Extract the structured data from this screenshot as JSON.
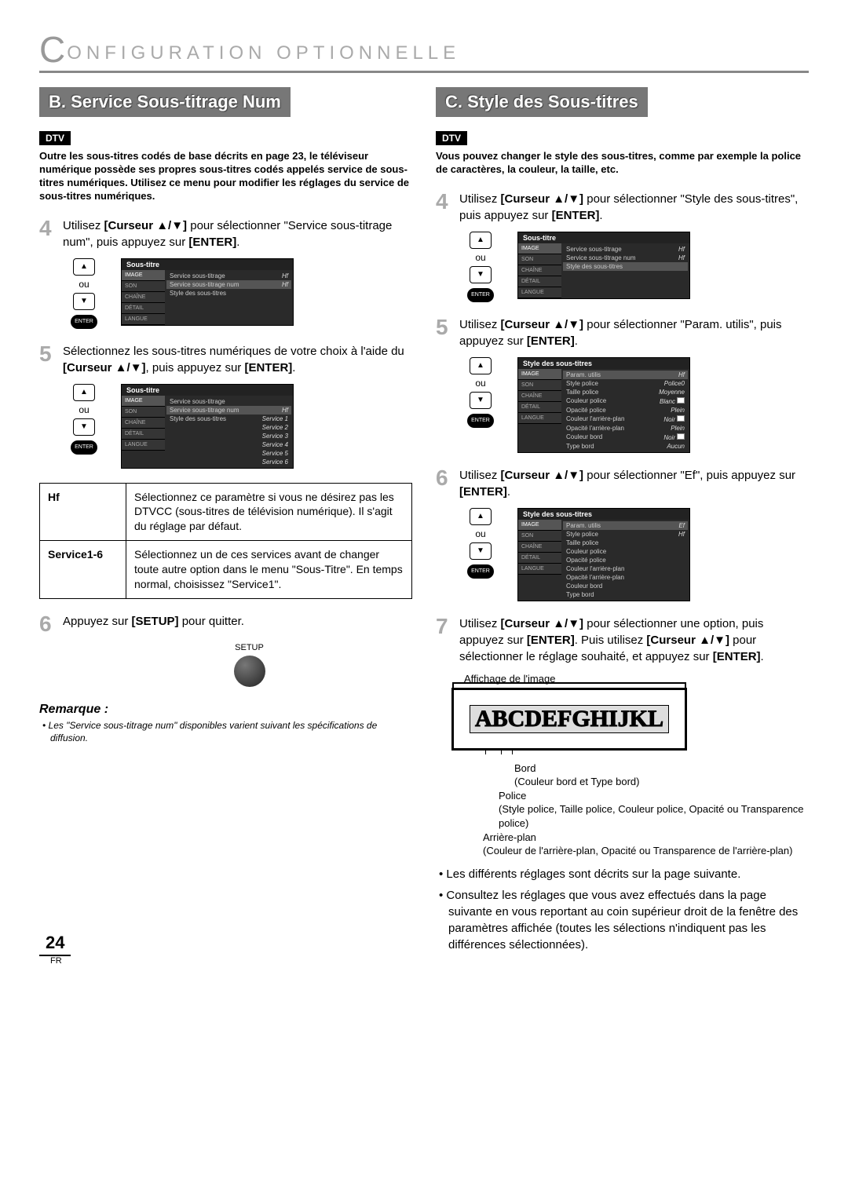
{
  "page": {
    "title_big_c": "C",
    "title_rest": "ONFIGURATION   OPTIONNELLE",
    "number": "24",
    "lang": "FR"
  },
  "badges": {
    "dtv": "DTV"
  },
  "remote": {
    "ou": "ou",
    "enter": "ENTER"
  },
  "left": {
    "heading": "B.  Service Sous-titrage Num",
    "intro": "Outre les sous-titres codés de base décrits en page 23, le téléviseur numérique possède ses propres sous-titres codés appelés service de sous-titres numériques. Utilisez ce menu pour modifier les réglages du service de sous-titres numériques.",
    "step4": {
      "num": "4",
      "pre": "Utilisez ",
      "b1": "[Curseur ▲/▼]",
      "mid": " pour sélectionner \"Service sous-titrage num\", puis appuyez sur ",
      "b2": "[ENTER]",
      "post": "."
    },
    "osd4": {
      "title": "Sous-titre",
      "side": [
        "IMAGE",
        "SON",
        "CHAÎNE",
        "DÉTAIL",
        "LANGUE"
      ],
      "rows": [
        {
          "l": "Service sous-titrage",
          "v": "Hf"
        },
        {
          "l": "Service sous-titrage num",
          "v": "Hf",
          "sel": true
        },
        {
          "l": "Style des sous-titres",
          "v": ""
        }
      ]
    },
    "step5": {
      "num": "5",
      "pre": "Sélectionnez les sous-titres numériques de votre choix à l'aide du ",
      "b1": "[Curseur ▲/▼]",
      "mid": ", puis appuyez sur ",
      "b2": "[ENTER]",
      "post": "."
    },
    "osd5": {
      "title": "Sous-titre",
      "side": [
        "IMAGE",
        "SON",
        "CHAÎNE",
        "DÉTAIL",
        "LANGUE"
      ],
      "rows": [
        {
          "l": "Service sous-titrage",
          "v": ""
        },
        {
          "l": "Service sous-titrage num",
          "v": "Hf",
          "sel": true
        },
        {
          "l": "Style des sous-titres",
          "v": "Service 1"
        },
        {
          "l": "",
          "v": "Service 2"
        },
        {
          "l": "",
          "v": "Service 3"
        },
        {
          "l": "",
          "v": "Service 4"
        },
        {
          "l": "",
          "v": "Service 5"
        },
        {
          "l": "",
          "v": "Service 6"
        }
      ]
    },
    "table": {
      "r1": {
        "k": "Hf",
        "v": "Sélectionnez ce paramètre si vous ne désirez pas les DTVCC (sous-titres de télévision numérique). Il s'agit du réglage par défaut."
      },
      "r2": {
        "k": "Service1-6",
        "v": "Sélectionnez un de ces services avant de changer toute autre option dans le menu \"Sous-Titre\". En temps normal, choisissez \"Service1\"."
      }
    },
    "step6": {
      "num": "6",
      "pre": "Appuyez sur ",
      "b1": "[SETUP]",
      "post": " pour quitter."
    },
    "setup_label": "SETUP",
    "note_head": "Remarque :",
    "note_body": "• Les \"Service sous-titrage num\" disponibles varient suivant les spécifications de diffusion."
  },
  "right": {
    "heading": "C.  Style des Sous-titres",
    "intro": "Vous pouvez changer le style des sous-titres, comme par exemple la police de caractères, la couleur, la taille, etc.",
    "step4": {
      "num": "4",
      "pre": "Utilisez ",
      "b1": "[Curseur ▲/▼]",
      "mid": " pour sélectionner \"Style des sous-titres\", puis appuyez sur ",
      "b2": "[ENTER]",
      "post": "."
    },
    "osd4": {
      "title": "Sous-titre",
      "side": [
        "IMAGE",
        "SON",
        "CHAÎNE",
        "DÉTAIL",
        "LANGUE"
      ],
      "rows": [
        {
          "l": "Service sous-titrage",
          "v": "Hf"
        },
        {
          "l": "Service sous-titrage num",
          "v": "Hf"
        },
        {
          "l": "Style des sous-titres",
          "v": "",
          "sel": true
        }
      ]
    },
    "step5": {
      "num": "5",
      "pre": "Utilisez ",
      "b1": "[Curseur ▲/▼]",
      "mid": " pour sélectionner \"Param. utilis\", puis appuyez sur ",
      "b2": "[ENTER]",
      "post": "."
    },
    "osd5": {
      "title": "Style des sous-titres",
      "side": [
        "IMAGE",
        "SON",
        "CHAÎNE",
        "DÉTAIL",
        "LANGUE"
      ],
      "rows": [
        {
          "l": "Param. utilis",
          "v": "Hf",
          "sel": true
        },
        {
          "l": "Style police",
          "v": "Police0"
        },
        {
          "l": "Taille police",
          "v": "Moyenne"
        },
        {
          "l": "Couleur police",
          "v": "Blanc",
          "sw": true
        },
        {
          "l": "Opacité police",
          "v": "Plein"
        },
        {
          "l": "Couleur l'arrière-plan",
          "v": "Noir",
          "sw": true
        },
        {
          "l": "Opacité l'arrière-plan",
          "v": "Plein"
        },
        {
          "l": "Couleur bord",
          "v": "Noir",
          "sw": true
        },
        {
          "l": "Type bord",
          "v": "Aucun"
        }
      ]
    },
    "step6": {
      "num": "6",
      "pre": "Utilisez ",
      "b1": "[Curseur ▲/▼]",
      "mid": " pour sélectionner \"Ef\", puis appuyez sur ",
      "b2": "[ENTER]",
      "post": "."
    },
    "osd6": {
      "title": "Style des sous-titres",
      "side": [
        "IMAGE",
        "SON",
        "CHAÎNE",
        "DÉTAIL",
        "LANGUE"
      ],
      "rows": [
        {
          "l": "Param. utilis",
          "v": "Ef",
          "sel": true
        },
        {
          "l": "Style police",
          "v": "Hf"
        },
        {
          "l": "Taille police",
          "v": ""
        },
        {
          "l": "Couleur police",
          "v": ""
        },
        {
          "l": "Opacité police",
          "v": ""
        },
        {
          "l": "Couleur l'arrière-plan",
          "v": ""
        },
        {
          "l": "Opacité l'arrière-plan",
          "v": ""
        },
        {
          "l": "Couleur bord",
          "v": ""
        },
        {
          "l": "Type bord",
          "v": ""
        }
      ]
    },
    "step7": {
      "num": "7",
      "pre": "Utilisez ",
      "b1": "[Curseur ▲/▼]",
      "mid1": " pour sélectionner une option, puis appuyez sur ",
      "b2": "[ENTER]",
      "mid2": ". Puis utilisez ",
      "b3": "[Curseur ▲/▼]",
      "mid3": " pour sélectionner le réglage souhaité, et appuyez sur ",
      "b4": "[ENTER]",
      "post": "."
    },
    "display": {
      "af": "Affichage de l'image",
      "sample": "ABCDEFGHIJKL",
      "legend": {
        "bord": "Bord",
        "bord2": "(Couleur bord et Type bord)",
        "police": "Police",
        "police2": "(Style police, Taille police, Couleur police, Opacité ou Transparence police)",
        "ap": "Arrière-plan",
        "ap2": "(Couleur de l'arrière-plan, Opacité ou Transparence de l'arrière-plan)"
      }
    },
    "bullets": [
      "Les différents réglages sont décrits sur la page suivante.",
      "Consultez les réglages que vous avez effectués dans la page suivante en vous reportant au coin supérieur droit de la fenêtre des paramètres affichée (toutes les sélections n'indiquent pas les différences sélectionnées)."
    ]
  }
}
